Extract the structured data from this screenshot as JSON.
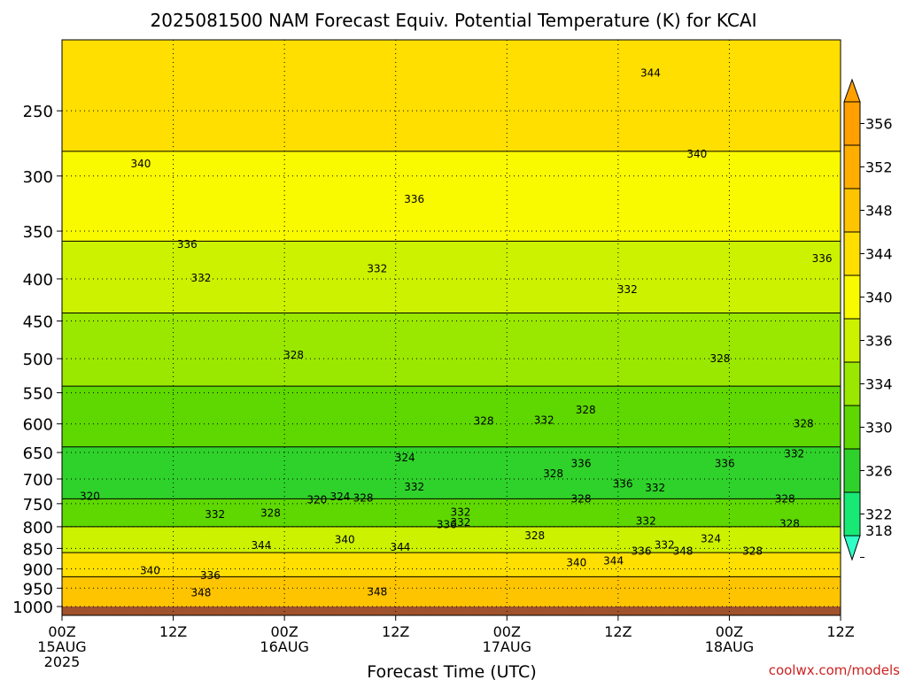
{
  "chart_data": {
    "type": "heatmap",
    "title": "2025081500 NAM Forecast Equiv. Potential Temperature (K) for KCAI",
    "xlabel": "Forecast Time (UTC)",
    "ylabel": "",
    "x_ticks": [
      {
        "hour": 0,
        "label": "00Z",
        "sub": [
          "15AUG",
          "2025"
        ]
      },
      {
        "hour": 12,
        "label": "12Z",
        "sub": []
      },
      {
        "hour": 24,
        "label": "00Z",
        "sub": [
          "16AUG"
        ]
      },
      {
        "hour": 36,
        "label": "12Z",
        "sub": []
      },
      {
        "hour": 48,
        "label": "00Z",
        "sub": [
          "17AUG"
        ]
      },
      {
        "hour": 60,
        "label": "12Z",
        "sub": []
      },
      {
        "hour": 72,
        "label": "00Z",
        "sub": [
          "18AUG"
        ]
      },
      {
        "hour": 84,
        "label": "12Z",
        "sub": []
      }
    ],
    "xlim": [
      0,
      84
    ],
    "y_levels": [
      250,
      300,
      350,
      400,
      450,
      500,
      550,
      600,
      650,
      700,
      750,
      800,
      850,
      900,
      950,
      1000
    ],
    "ylim": [
      1025,
      205
    ],
    "y_scale": "log",
    "grid": true,
    "surface_color": "#a0522d",
    "colorbar": {
      "labels": [
        356,
        352,
        348,
        344,
        340,
        336,
        334,
        330,
        326,
        322,
        318
      ],
      "colors": [
        "#ff9f00",
        "#ffae00",
        "#ffc400",
        "#ffdf00",
        "#f9f900",
        "#ccf200",
        "#9ae800",
        "#5ed800",
        "#2fd22a",
        "#18e874",
        "#30ffc8"
      ]
    },
    "layers": [
      {
        "top_p": 205,
        "theta": 344
      },
      {
        "top_p": 280,
        "theta": 340
      },
      {
        "top_p": 360,
        "theta": 336
      },
      {
        "top_p": 440,
        "theta": 332
      },
      {
        "top_p": 540,
        "theta": 328
      },
      {
        "top_p": 640,
        "theta": 326
      },
      {
        "top_p": 740,
        "theta": 330
      },
      {
        "top_p": 800,
        "theta": 336
      },
      {
        "top_p": 860,
        "theta": 344
      },
      {
        "top_p": 920,
        "theta": 348
      }
    ],
    "contour_labels": [
      {
        "hour": 63.5,
        "p": 225,
        "text": "344"
      },
      {
        "hour": 8.5,
        "p": 290,
        "text": "340"
      },
      {
        "hour": 68.5,
        "p": 282,
        "text": "340"
      },
      {
        "hour": 38,
        "p": 320,
        "text": "336"
      },
      {
        "hour": 13.5,
        "p": 363,
        "text": "336"
      },
      {
        "hour": 82,
        "p": 378,
        "text": "336"
      },
      {
        "hour": 34,
        "p": 389,
        "text": "332"
      },
      {
        "hour": 15,
        "p": 399,
        "text": "332"
      },
      {
        "hour": 61,
        "p": 412,
        "text": "332"
      },
      {
        "hour": 25,
        "p": 495,
        "text": "328"
      },
      {
        "hour": 71,
        "p": 500,
        "text": "328"
      },
      {
        "hour": 52,
        "p": 594,
        "text": "332"
      },
      {
        "hour": 45.5,
        "p": 595,
        "text": "328"
      },
      {
        "hour": 56.5,
        "p": 577,
        "text": "328"
      },
      {
        "hour": 80,
        "p": 600,
        "text": "328"
      },
      {
        "hour": 37,
        "p": 660,
        "text": "324"
      },
      {
        "hour": 79,
        "p": 652,
        "text": "332"
      },
      {
        "hour": 53,
        "p": 690,
        "text": "328"
      },
      {
        "hour": 56,
        "p": 670,
        "text": "336"
      },
      {
        "hour": 71.5,
        "p": 670,
        "text": "336"
      },
      {
        "hour": 3,
        "p": 735,
        "text": "320"
      },
      {
        "hour": 27.5,
        "p": 742,
        "text": "320"
      },
      {
        "hour": 30,
        "p": 736,
        "text": "324"
      },
      {
        "hour": 32.5,
        "p": 738,
        "text": "328"
      },
      {
        "hour": 38,
        "p": 716,
        "text": "332"
      },
      {
        "hour": 56,
        "p": 740,
        "text": "328"
      },
      {
        "hour": 60.5,
        "p": 710,
        "text": "336"
      },
      {
        "hour": 64,
        "p": 718,
        "text": "332"
      },
      {
        "hour": 78,
        "p": 740,
        "text": "328"
      },
      {
        "hour": 16.5,
        "p": 773,
        "text": "332"
      },
      {
        "hour": 22.5,
        "p": 770,
        "text": "328"
      },
      {
        "hour": 43,
        "p": 768,
        "text": "332"
      },
      {
        "hour": 41.5,
        "p": 795,
        "text": "336"
      },
      {
        "hour": 43,
        "p": 790,
        "text": "332"
      },
      {
        "hour": 63,
        "p": 787,
        "text": "332"
      },
      {
        "hour": 78.5,
        "p": 793,
        "text": "328"
      },
      {
        "hour": 51,
        "p": 820,
        "text": "328"
      },
      {
        "hour": 70,
        "p": 827,
        "text": "324"
      },
      {
        "hour": 21.5,
        "p": 843,
        "text": "344"
      },
      {
        "hour": 30.5,
        "p": 829,
        "text": "340"
      },
      {
        "hour": 36.5,
        "p": 847,
        "text": "344"
      },
      {
        "hour": 65,
        "p": 842,
        "text": "332"
      },
      {
        "hour": 62.5,
        "p": 857,
        "text": "336"
      },
      {
        "hour": 67,
        "p": 857,
        "text": "348"
      },
      {
        "hour": 74.5,
        "p": 857,
        "text": "328"
      },
      {
        "hour": 9.5,
        "p": 905,
        "text": "340"
      },
      {
        "hour": 16,
        "p": 917,
        "text": "336"
      },
      {
        "hour": 55.5,
        "p": 885,
        "text": "340"
      },
      {
        "hour": 59.5,
        "p": 880,
        "text": "344"
      },
      {
        "hour": 15,
        "p": 962,
        "text": "348"
      },
      {
        "hour": 34,
        "p": 960,
        "text": "348"
      }
    ]
  },
  "credit": "coolwx.com/models"
}
